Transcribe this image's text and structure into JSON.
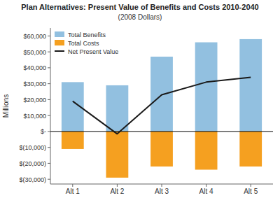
{
  "chart_data": {
    "type": "bar",
    "title": "Plan Alternatives: Present Value of Benefits and Costs 2010-2040",
    "subtitle": "(2008 Dollars)",
    "ylabel": "Millions",
    "categories": [
      "Alt 1",
      "Alt 2",
      "Alt 3",
      "Alt 4",
      "Alt 5"
    ],
    "series": [
      {
        "name": "Total Benefits",
        "type": "bar",
        "color": "#92C0E0",
        "values": [
          31000,
          29000,
          47000,
          56000,
          58000
        ]
      },
      {
        "name": "Total Costs",
        "type": "bar",
        "color": "#F5A020",
        "values": [
          -11000,
          -29000,
          -22000,
          -24000,
          -22000
        ]
      },
      {
        "name": "Net Present Value",
        "type": "line",
        "color": "#1A1A1A",
        "values": [
          19000,
          -1500,
          23000,
          31000,
          34000
        ]
      }
    ],
    "stacked": true,
    "ylim": [
      -33000,
      65000
    ],
    "yticks": [
      {
        "value": -30000,
        "label": "$(30,000)"
      },
      {
        "value": -20000,
        "label": "$(20,000)"
      },
      {
        "value": -10000,
        "label": "$(10,000)"
      },
      {
        "value": 0,
        "label": "$-"
      },
      {
        "value": 10000,
        "label": "$10,000"
      },
      {
        "value": 20000,
        "label": "$20,000"
      },
      {
        "value": 30000,
        "label": "$30,000"
      },
      {
        "value": 40000,
        "label": "$40,000"
      },
      {
        "value": 50000,
        "label": "$50,000"
      },
      {
        "value": 60000,
        "label": "$60,000"
      }
    ],
    "grid": false,
    "legend": "upper left"
  }
}
